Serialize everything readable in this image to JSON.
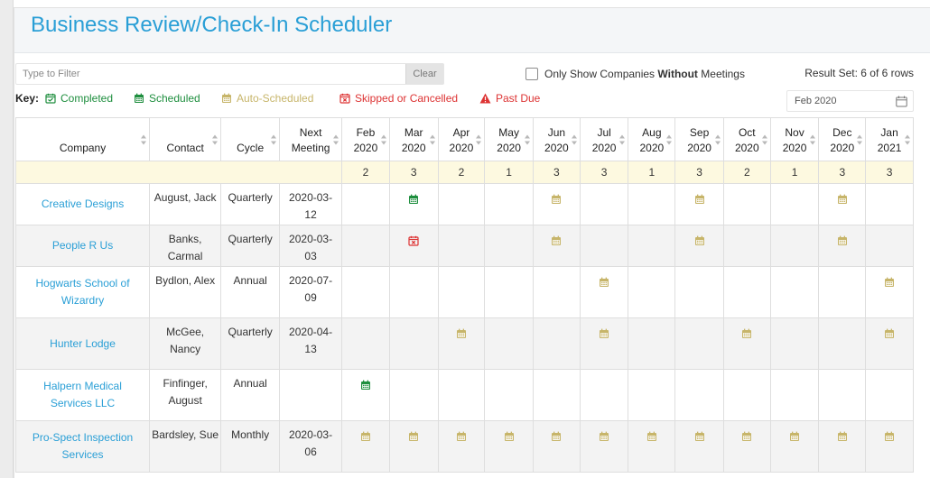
{
  "title": "Business Review/Check-In Scheduler",
  "filter": {
    "placeholder": "Type to Filter",
    "value": "",
    "clear_label": "Clear"
  },
  "only_show": {
    "prefix": "Only Show Companies ",
    "bold": "Without",
    "suffix": " Meetings",
    "checked": false
  },
  "result_set": "Result Set: 6 of 6 rows",
  "key": {
    "label": "Key:",
    "completed": "Completed",
    "scheduled": "Scheduled",
    "auto_scheduled": "Auto-Scheduled",
    "skipped": "Skipped or Cancelled",
    "past_due": "Past Due"
  },
  "date_picker": {
    "value": "Feb 2020"
  },
  "colors": {
    "accent": "#2a9fd6",
    "completed": "#1e8e3e",
    "scheduled": "#1e8e3e",
    "auto": "#c7b56a",
    "skipped": "#dd3333",
    "counts_bg": "#fdf9e0"
  },
  "columns": {
    "company": "Company",
    "contact": "Contact",
    "cycle": "Cycle",
    "next_line1": "Next",
    "next_line2": "Meeting"
  },
  "months": [
    {
      "m": "Feb",
      "y": "2020"
    },
    {
      "m": "Mar",
      "y": "2020"
    },
    {
      "m": "Apr",
      "y": "2020"
    },
    {
      "m": "May",
      "y": "2020"
    },
    {
      "m": "Jun",
      "y": "2020"
    },
    {
      "m": "Jul",
      "y": "2020"
    },
    {
      "m": "Aug",
      "y": "2020"
    },
    {
      "m": "Sep",
      "y": "2020"
    },
    {
      "m": "Oct",
      "y": "2020"
    },
    {
      "m": "Nov",
      "y": "2020"
    },
    {
      "m": "Dec",
      "y": "2020"
    },
    {
      "m": "Jan",
      "y": "2021"
    }
  ],
  "counts": [
    "2",
    "3",
    "2",
    "1",
    "3",
    "3",
    "1",
    "3",
    "2",
    "1",
    "3",
    "3"
  ],
  "rows": [
    {
      "company": "Creative Designs",
      "contact": "August, Jack",
      "cycle": "Quarterly",
      "next": "2020-03-12",
      "cells": [
        "",
        "scheduled",
        "",
        "",
        "auto",
        "",
        "",
        "auto",
        "",
        "",
        "auto",
        ""
      ]
    },
    {
      "company": "People R Us",
      "contact": "Banks, Carmal",
      "cycle": "Quarterly",
      "next": "2020-03-03",
      "cells": [
        "",
        "skipped",
        "",
        "",
        "auto",
        "",
        "",
        "auto",
        "",
        "",
        "auto",
        ""
      ]
    },
    {
      "company": "Hogwarts School of Wizardry",
      "contact": "Bydlon, Alex",
      "cycle": "Annual",
      "next": "2020-07-09",
      "cells": [
        "",
        "",
        "",
        "",
        "",
        "auto",
        "",
        "",
        "",
        "",
        "",
        "auto"
      ]
    },
    {
      "company": "Hunter Lodge",
      "contact": "McGee, Nancy",
      "cycle": "Quarterly",
      "next": "2020-04-13",
      "cells": [
        "",
        "",
        "auto",
        "",
        "",
        "auto",
        "",
        "",
        "auto",
        "",
        "",
        "auto"
      ]
    },
    {
      "company": "Halpern Medical Services LLC",
      "contact": "Finfinger, August",
      "cycle": "Annual",
      "next": "",
      "cells": [
        "scheduled",
        "",
        "",
        "",
        "",
        "",
        "",
        "",
        "",
        "",
        "",
        ""
      ]
    },
    {
      "company": "Pro-Spect Inspection Services",
      "contact": "Bardsley, Sue",
      "cycle": "Monthly",
      "next": "2020-03-06",
      "cells": [
        "auto",
        "auto",
        "auto",
        "auto",
        "auto",
        "auto",
        "auto",
        "auto",
        "auto",
        "auto",
        "auto",
        "auto"
      ]
    }
  ]
}
